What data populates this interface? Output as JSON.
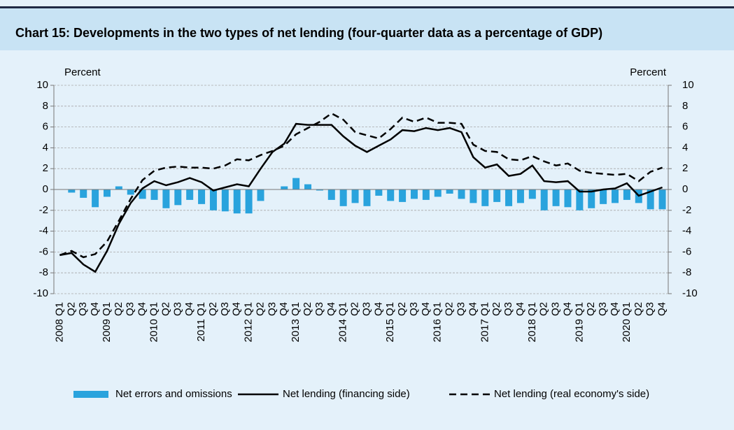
{
  "chart_data": {
    "type": "bar_line",
    "title": "Chart 15: Developments in the two types of net lending (four-quarter data as a percentage of GDP)",
    "y_label": "Percent",
    "y2_label": "Percent",
    "categories": [
      "2008 Q1",
      "Q2",
      "Q3",
      "Q4",
      "2009 Q1",
      "Q2",
      "Q3",
      "Q4",
      "2010 Q1",
      "Q2",
      "Q3",
      "Q4",
      "2011 Q1",
      "Q2",
      "Q3",
      "Q4",
      "2012 Q1",
      "Q2",
      "Q3",
      "Q4",
      "2013 Q1",
      "Q2",
      "Q3",
      "Q4",
      "2014 Q1",
      "Q2",
      "Q3",
      "Q4",
      "2015 Q1",
      "Q2",
      "Q3",
      "Q4",
      "2016 Q1",
      "Q2",
      "Q3",
      "Q4",
      "2017 Q1",
      "Q2",
      "Q3",
      "Q4",
      "2018 Q1",
      "Q2",
      "Q3",
      "Q4",
      "2019 Q1",
      "Q2",
      "Q3",
      "Q4",
      "2020 Q1",
      "Q2",
      "Q3",
      "Q4"
    ],
    "series": [
      {
        "name": "Net errors and omissions",
        "type": "bar",
        "color": "#29a3dd",
        "values": [
          0,
          -0.3,
          -0.8,
          -1.7,
          -0.7,
          0.3,
          -0.5,
          -0.9,
          -1.0,
          -1.8,
          -1.5,
          -1.0,
          -1.4,
          -2.0,
          -2.1,
          -2.3,
          -2.3,
          -1.1,
          0,
          0.3,
          1.1,
          0.5,
          -0.1,
          -1.0,
          -1.6,
          -1.3,
          -1.6,
          -0.6,
          -1.1,
          -1.2,
          -0.9,
          -1.0,
          -0.7,
          -0.4,
          -0.9,
          -1.3,
          -1.6,
          -1.2,
          -1.6,
          -1.3,
          -0.9,
          -2.0,
          -1.6,
          -1.7,
          -2.0,
          -1.8,
          -1.4,
          -1.3,
          -1.0,
          -1.3,
          -1.9,
          -1.9
        ]
      },
      {
        "name": "Net lending (financing side)",
        "type": "line",
        "color": "#000000",
        "dash": false,
        "values": [
          -6.3,
          -6.1,
          -7.2,
          -7.9,
          -5.9,
          -3.3,
          -1.3,
          0.1,
          0.8,
          0.4,
          0.7,
          1.1,
          0.7,
          -0.1,
          0.2,
          0.5,
          0.3,
          2.0,
          3.6,
          4.4,
          6.3,
          6.2,
          6.2,
          6.2,
          5.1,
          4.2,
          3.6,
          4.2,
          4.8,
          5.7,
          5.6,
          5.9,
          5.7,
          5.9,
          5.5,
          3.1,
          2.1,
          2.4,
          1.3,
          1.5,
          2.3,
          0.8,
          0.7,
          0.8,
          -0.2,
          -0.2,
          0,
          0.1,
          0.6,
          -0.6,
          -0.2,
          0.2
        ]
      },
      {
        "name": "Net lending (real economy's side)",
        "type": "line",
        "color": "#000000",
        "dash": true,
        "values": [
          -6.3,
          -5.9,
          -6.5,
          -6.2,
          -5.0,
          -3.0,
          -0.9,
          0.9,
          1.8,
          2.1,
          2.2,
          2.1,
          2.1,
          2.0,
          2.3,
          2.9,
          2.8,
          3.3,
          3.7,
          4.2,
          5.3,
          5.9,
          6.5,
          7.3,
          6.7,
          5.5,
          5.2,
          4.9,
          5.8,
          6.9,
          6.5,
          6.9,
          6.4,
          6.4,
          6.3,
          4.3,
          3.7,
          3.6,
          2.9,
          2.8,
          3.2,
          2.7,
          2.3,
          2.5,
          1.8,
          1.6,
          1.5,
          1.4,
          1.5,
          0.8,
          1.7,
          2.1
        ]
      }
    ],
    "ylim": [
      -10,
      10
    ],
    "yticks": [
      -10,
      -8,
      -6,
      -4,
      -2,
      0,
      2,
      4,
      6,
      8,
      10
    ],
    "y2lim": [
      -10,
      10
    ],
    "y2ticks": [
      -10,
      -8,
      -6,
      -4,
      -2,
      0,
      2,
      4,
      6,
      8,
      10
    ],
    "grid": true,
    "legend": "bottom"
  }
}
